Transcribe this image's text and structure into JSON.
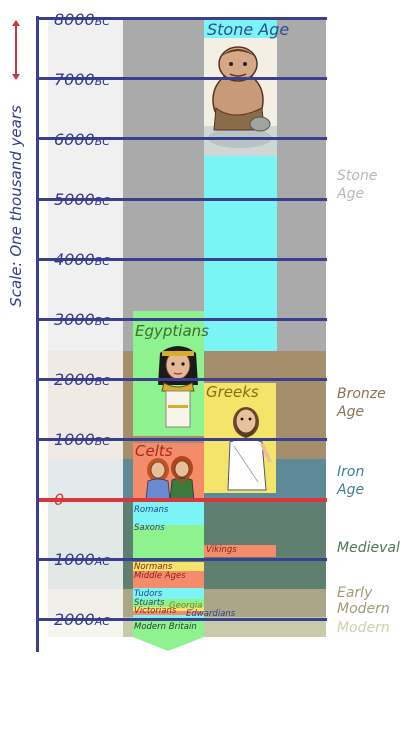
{
  "scale_label": "Scale: One thousand years",
  "ticks": [
    {
      "value": "8000",
      "suffix": "BC"
    },
    {
      "value": "7000",
      "suffix": "BC"
    },
    {
      "value": "6000",
      "suffix": "BC"
    },
    {
      "value": "5000",
      "suffix": "BC"
    },
    {
      "value": "4000",
      "suffix": "BC"
    },
    {
      "value": "3000",
      "suffix": "BC"
    },
    {
      "value": "2000",
      "suffix": "BC"
    },
    {
      "value": "1000",
      "suffix": "BC"
    },
    {
      "value": "0",
      "suffix": ""
    },
    {
      "value": "1000",
      "suffix": "AC"
    },
    {
      "value": "2000",
      "suffix": "AC"
    }
  ],
  "eras": [
    {
      "label": "Stone Age",
      "color": "#b8b8b8"
    },
    {
      "label": "Bronze Age",
      "color": "#8d7352"
    },
    {
      "label": "Iron Age",
      "color": "#3f8095"
    },
    {
      "label": "Medieval",
      "color": "#4e7a60"
    },
    {
      "label": "Early Modern",
      "color": "#a29a78"
    },
    {
      "label": "Modern",
      "color": "#cfcfad"
    }
  ],
  "civilizations": [
    {
      "label": "Stone Age",
      "color": "#7af4f4"
    },
    {
      "label": "Egyptians",
      "color": "#8ef28e"
    },
    {
      "label": "Greeks",
      "color": "#f4e56a"
    },
    {
      "label": "Celts",
      "color": "#f48c6c"
    }
  ],
  "periods": [
    {
      "label": "Romans",
      "color": "#7af4f4"
    },
    {
      "label": "Saxons",
      "color": "#8ef28e"
    },
    {
      "label": "Vikings",
      "color": "#f48c6c"
    },
    {
      "label": "Normans",
      "color": "#f4e56a"
    },
    {
      "label": "Middle Ages",
      "color": "#f48c6c"
    },
    {
      "label": "Tudors",
      "color": "#7af4f4"
    },
    {
      "label": "Stuarts",
      "color": "#8ef28e"
    },
    {
      "label": "Georgia",
      "color": "#f4e56a"
    },
    {
      "label": "Victorians",
      "color": "#f48c6c"
    },
    {
      "label": "Edwardians",
      "color": "#7af4f4"
    },
    {
      "label": "Modern Britain",
      "color": "#8ef28e"
    }
  ],
  "colors": {
    "axis": "#3a3f8f",
    "zero_line": "#d9363e",
    "tick_text": "#343a8f",
    "zero_text": "#d9363e",
    "scale_text": "#c7363a"
  }
}
